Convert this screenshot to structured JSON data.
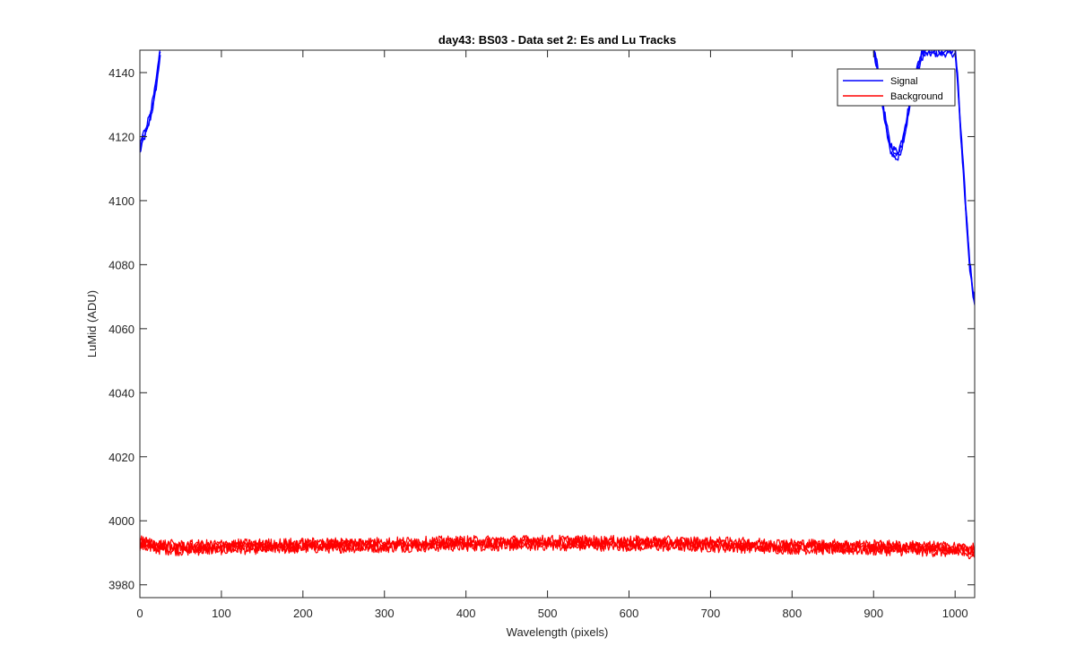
{
  "chart_data": {
    "type": "line",
    "title": "day43: BS03 - Data set 2: Es and Lu Tracks",
    "xlabel": "Wavelength (pixels)",
    "ylabel": "LuMid (ADU)",
    "xlim": [
      0,
      1024
    ],
    "ylim": [
      3976,
      4147
    ],
    "xticks": [
      0,
      100,
      200,
      300,
      400,
      500,
      600,
      700,
      800,
      900,
      1000
    ],
    "yticks": [
      3980,
      4000,
      4020,
      4040,
      4060,
      4080,
      4100,
      4120,
      4140
    ],
    "grid": false,
    "legend_position": "top-right",
    "series": [
      {
        "name": "Signal",
        "color": "#0000ff",
        "x": [
          0,
          3,
          6,
          10,
          14,
          18,
          22,
          25,
          900,
          905,
          910,
          915,
          920,
          925,
          930,
          935,
          940,
          945,
          950,
          955,
          960,
          965,
          1000,
          1003,
          1006,
          1010,
          1014,
          1018,
          1022,
          1024
        ],
        "y": [
          4116,
          4119,
          4121,
          4124,
          4128,
          4133,
          4140,
          4147,
          4147,
          4141,
          4132,
          4124,
          4117,
          4115,
          4114,
          4118,
          4124,
          4131,
          4137,
          4142,
          4146,
          4147,
          4147,
          4138,
          4125,
          4110,
          4094,
          4080,
          4071,
          4068
        ]
      },
      {
        "name": "Background",
        "color": "#ff0000",
        "x": [
          0,
          20,
          50,
          100,
          150,
          200,
          250,
          300,
          350,
          400,
          450,
          500,
          550,
          600,
          650,
          700,
          750,
          800,
          850,
          900,
          950,
          1000,
          1024
        ],
        "y": [
          3993,
          3992,
          3991.5,
          3991.8,
          3992,
          3992.2,
          3992.4,
          3992.5,
          3992.7,
          3992.9,
          3993,
          3993.1,
          3993,
          3992.9,
          3992.8,
          3992.6,
          3992.3,
          3992,
          3991.8,
          3991.6,
          3991.4,
          3991,
          3990.5
        ]
      }
    ]
  }
}
